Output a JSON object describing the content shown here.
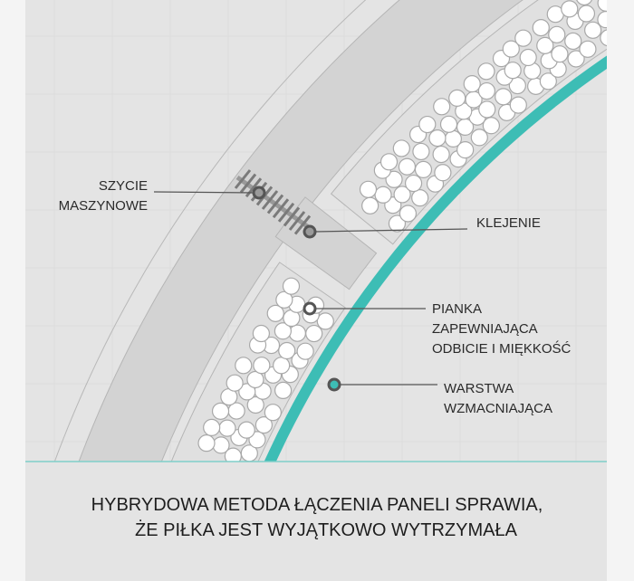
{
  "labels": {
    "stitching": [
      "SZYCIE",
      "MASZYNOWE"
    ],
    "gluing": "KLEJENIE",
    "foam": [
      "PIANKA",
      "ZAPEWNIAJĄCA",
      "ODBICIE I MIĘKKOŚĆ"
    ],
    "reinforcement": [
      "WARSTWA",
      "WZMACNIAJĄCA"
    ]
  },
  "caption": [
    "HYBRYDOWA METODA ŁĄCZENIA PANELI SPRAWIA,",
    "ŻE PIŁKA JEST WYJĄTKOWO WYTRZYMAŁA"
  ],
  "colors": {
    "teal": "#3dbdb5",
    "panel": "#d3d3d3",
    "background": "#e4e4e4",
    "foam": "#ffffff",
    "stitch": "#7a7a7a"
  }
}
